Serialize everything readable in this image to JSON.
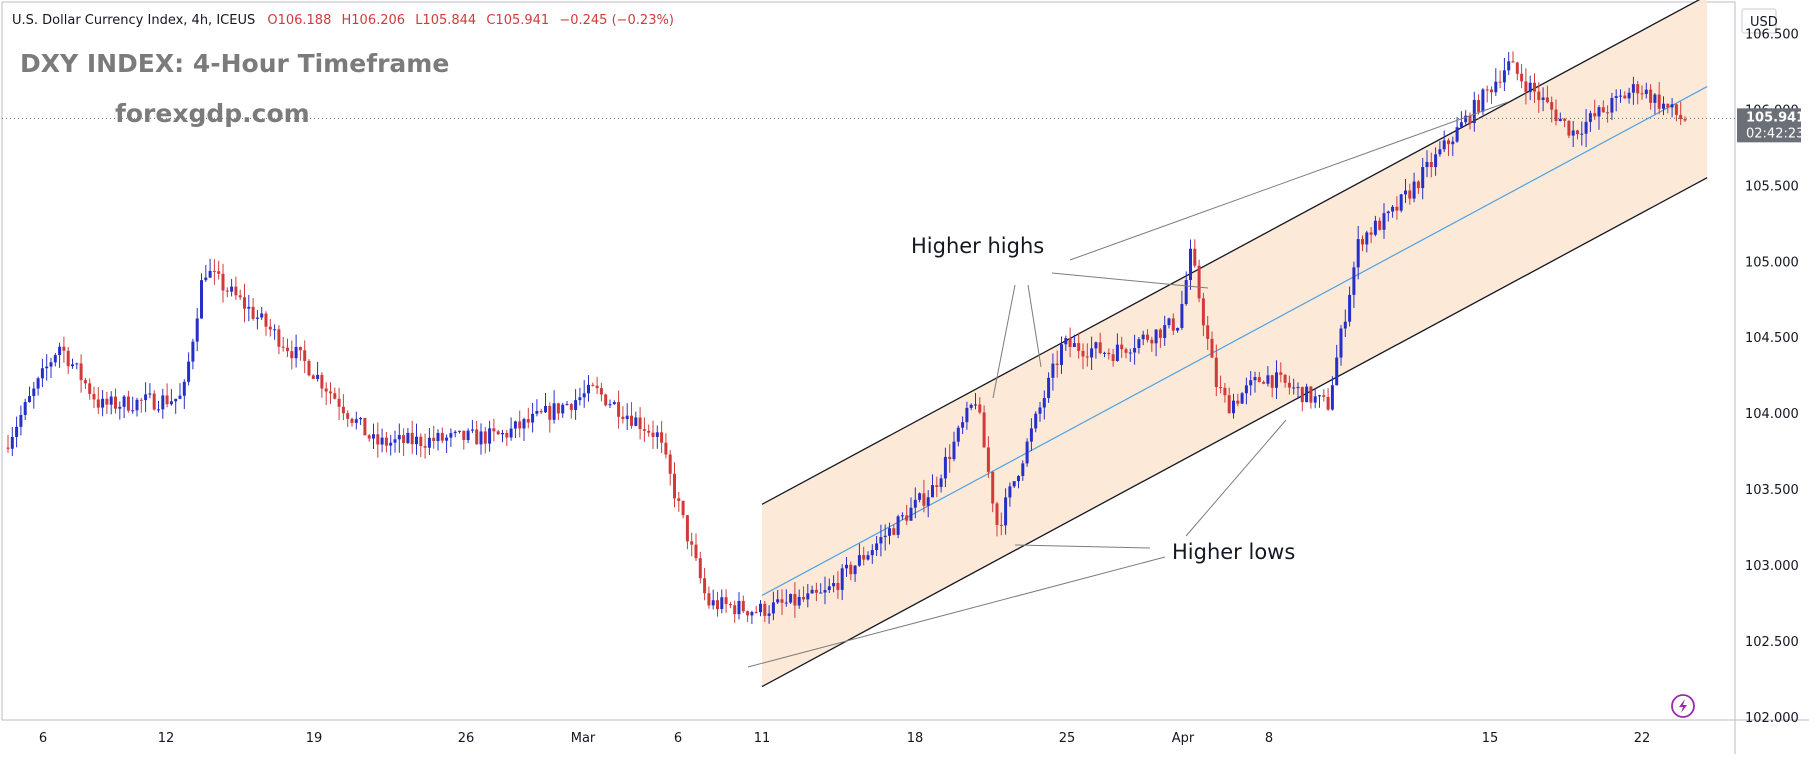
{
  "header": {
    "symbol": "U.S. Dollar Currency Index, 4h, ICEUS",
    "open": "O106.188",
    "high": "H106.206",
    "low": "L105.844",
    "close": "C105.941",
    "change": "−0.245 (−0.23%)"
  },
  "overlay": {
    "title": "DXY INDEX: 4-Hour Timeframe",
    "site": "forexgdp.com"
  },
  "annotations": {
    "higher_highs": "Higher highs",
    "higher_lows": "Higher lows"
  },
  "price_axis": {
    "currency": "USD",
    "last_price": "105.941",
    "countdown": "02:42:23"
  },
  "colors": {
    "up": "#2630c8",
    "down": "#d13a3a",
    "channel_fill": "#fde5d0",
    "mid_line": "#4da3e6",
    "badge": "#6b6f78"
  },
  "chart_data": {
    "type": "candlestick",
    "timeframe": "4h",
    "y_ticks": [
      "102.000",
      "102.500",
      "103.000",
      "103.500",
      "104.000",
      "104.500",
      "105.000",
      "105.500",
      "106.000",
      "106.500"
    ],
    "y_range": [
      101.98,
      106.72
    ],
    "x_ticks": [
      "6",
      "12",
      "19",
      "26",
      "Mar",
      "6",
      "11",
      "18",
      "25",
      "Apr",
      "8",
      "15",
      "22"
    ],
    "last_price": 105.941,
    "approx_close_path": [
      [
        "start",
        103.95
      ],
      [
        "Feb 07",
        104.45
      ],
      [
        "Feb 09",
        104.05
      ],
      [
        "Feb 13",
        104.1
      ],
      [
        "Feb 14",
        104.95
      ],
      [
        "Feb 16",
        104.7
      ],
      [
        "Feb 19",
        104.3
      ],
      [
        "Feb 22",
        103.8
      ],
      [
        "Feb 27",
        103.85
      ],
      [
        "Mar 01",
        104.15
      ],
      [
        "Mar 05",
        103.85
      ],
      [
        "Mar 08",
        102.75
      ],
      [
        "Mar 11",
        102.7
      ],
      [
        "Mar 14",
        102.8
      ],
      [
        "Mar 19",
        103.5
      ],
      [
        "Mar 21",
        104.1
      ],
      [
        "Mar 22",
        103.25
      ],
      [
        "Mar 25",
        104.45
      ],
      [
        "Mar 28",
        104.4
      ],
      [
        "Apr 01",
        104.6
      ],
      [
        "Apr 02",
        105.05
      ],
      [
        "Apr 04",
        104.2
      ],
      [
        "Apr 05",
        104.05
      ],
      [
        "Apr 08",
        104.25
      ],
      [
        "Apr 10",
        104.05
      ],
      [
        "Apr 11",
        105.15
      ],
      [
        "Apr 12",
        105.3
      ],
      [
        "Apr 15",
        106.1
      ],
      [
        "Apr 16",
        106.3
      ],
      [
        "Apr 19",
        105.85
      ],
      [
        "Apr 22",
        106.15
      ],
      [
        "Apr 24",
        105.941
      ]
    ],
    "channel": {
      "upper": [
        [
          "Mar 11",
          103.4
        ],
        [
          "Apr 25",
          106.75
        ]
      ],
      "lower": [
        [
          "Mar 11",
          102.2
        ],
        [
          "Apr 25",
          105.55
        ]
      ],
      "middle": [
        [
          "Mar 11",
          102.8
        ],
        [
          "Apr 25",
          106.15
        ]
      ]
    }
  }
}
